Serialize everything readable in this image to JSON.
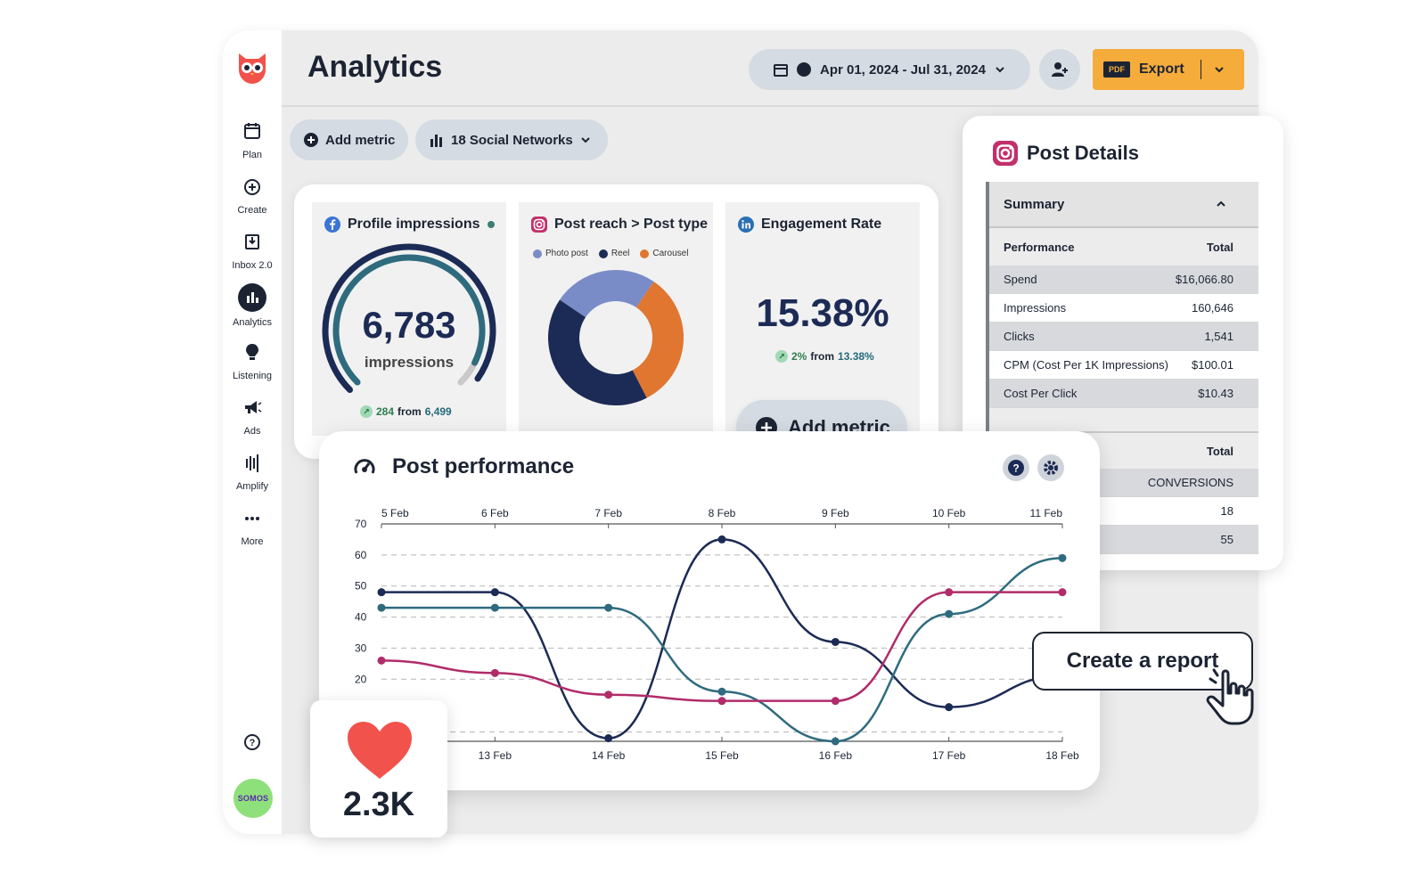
{
  "header": {
    "title": "Analytics",
    "date_range": "Apr 01, 2024 - Jul 31, 2024",
    "export": {
      "tag": "PDF",
      "label": "Export"
    }
  },
  "sidebar": {
    "items": [
      {
        "label": "Plan",
        "icon": "calendar-icon"
      },
      {
        "label": "Create",
        "icon": "plus-circle-icon"
      },
      {
        "label": "Inbox 2.0",
        "icon": "inbox-icon"
      },
      {
        "label": "Analytics",
        "icon": "bar-chart-icon",
        "active": true
      },
      {
        "label": "Listening",
        "icon": "lightbulb-icon"
      },
      {
        "label": "Ads",
        "icon": "megaphone-icon"
      },
      {
        "label": "Amplify",
        "icon": "amplify-icon"
      },
      {
        "label": "More",
        "icon": "more-icon"
      }
    ],
    "avatar_text": "SOMOS"
  },
  "toolbar": {
    "add_metric": "Add metric",
    "networks": "18 Social Networks"
  },
  "cards": {
    "profile_impressions": {
      "title": "Profile impressions",
      "value": "6,783",
      "unit": "impressions",
      "gauge_fraction": 0.93,
      "delta": "284",
      "from_label": "from",
      "base": "6,499"
    },
    "post_reach": {
      "title": "Post reach > Post type",
      "legend": [
        "Photo post",
        "Reel",
        "Carousel"
      ],
      "slices": [
        {
          "name": "Photo post",
          "value": 25,
          "color": "#7a8cc7"
        },
        {
          "name": "Carousel",
          "value": 33,
          "color": "#e07630"
        },
        {
          "name": "Reel",
          "value": 42,
          "color": "#1c2b55"
        }
      ]
    },
    "engagement": {
      "title": "Engagement Rate",
      "value": "15.38%",
      "delta": "2%",
      "from_label": "from",
      "base": "13.38%"
    },
    "add_metric_big": "Add metric"
  },
  "post_details": {
    "title": "Post Details",
    "summary_label": "Summary",
    "performance_header": "Performance",
    "total_header": "Total",
    "rows": [
      {
        "label": "Spend",
        "value": "$16,066.80"
      },
      {
        "label": "Impressions",
        "value": "160,646"
      },
      {
        "label": "Clicks",
        "value": "1,541"
      },
      {
        "label": "CPM (Cost Per 1K Impressions)",
        "value": "$100.01"
      },
      {
        "label": "Cost Per Click",
        "value": "$10.43"
      }
    ],
    "total_header_2": "Total",
    "rows2": [
      {
        "value": "CONVERSIONS"
      },
      {
        "value": "18"
      },
      {
        "value": "55"
      }
    ]
  },
  "post_performance": {
    "title": "Post performance",
    "chart_data": {
      "type": "line",
      "y_ticks": [
        70,
        60,
        50,
        40,
        30,
        20
      ],
      "ylim": [
        0,
        70
      ],
      "x_top": [
        "5 Feb",
        "6 Feb",
        "7 Feb",
        "8 Feb",
        "9 Feb",
        "10 Feb",
        "11 Feb"
      ],
      "x_bottom": [
        "13 Feb",
        "14 Feb",
        "15 Feb",
        "16 Feb",
        "17 Feb",
        "18 Feb"
      ],
      "x_index": [
        0,
        1,
        2,
        3,
        4,
        5,
        6
      ],
      "series": [
        {
          "color": "#1c2b55",
          "values": [
            48,
            48,
            1,
            65,
            32,
            11,
            21
          ]
        },
        {
          "color": "#2f6b7e",
          "values": [
            43,
            43,
            43,
            16,
            0,
            41,
            59
          ]
        },
        {
          "color": "#b02c6a",
          "values": [
            26,
            22,
            15,
            13,
            13,
            48,
            48
          ]
        }
      ]
    }
  },
  "overlays": {
    "likes": "2.3K",
    "create_report": "Create a report"
  },
  "colors": {
    "accent_orange": "#f5ac3b",
    "navy": "#1c2433",
    "owl_red": "#f2524c"
  }
}
